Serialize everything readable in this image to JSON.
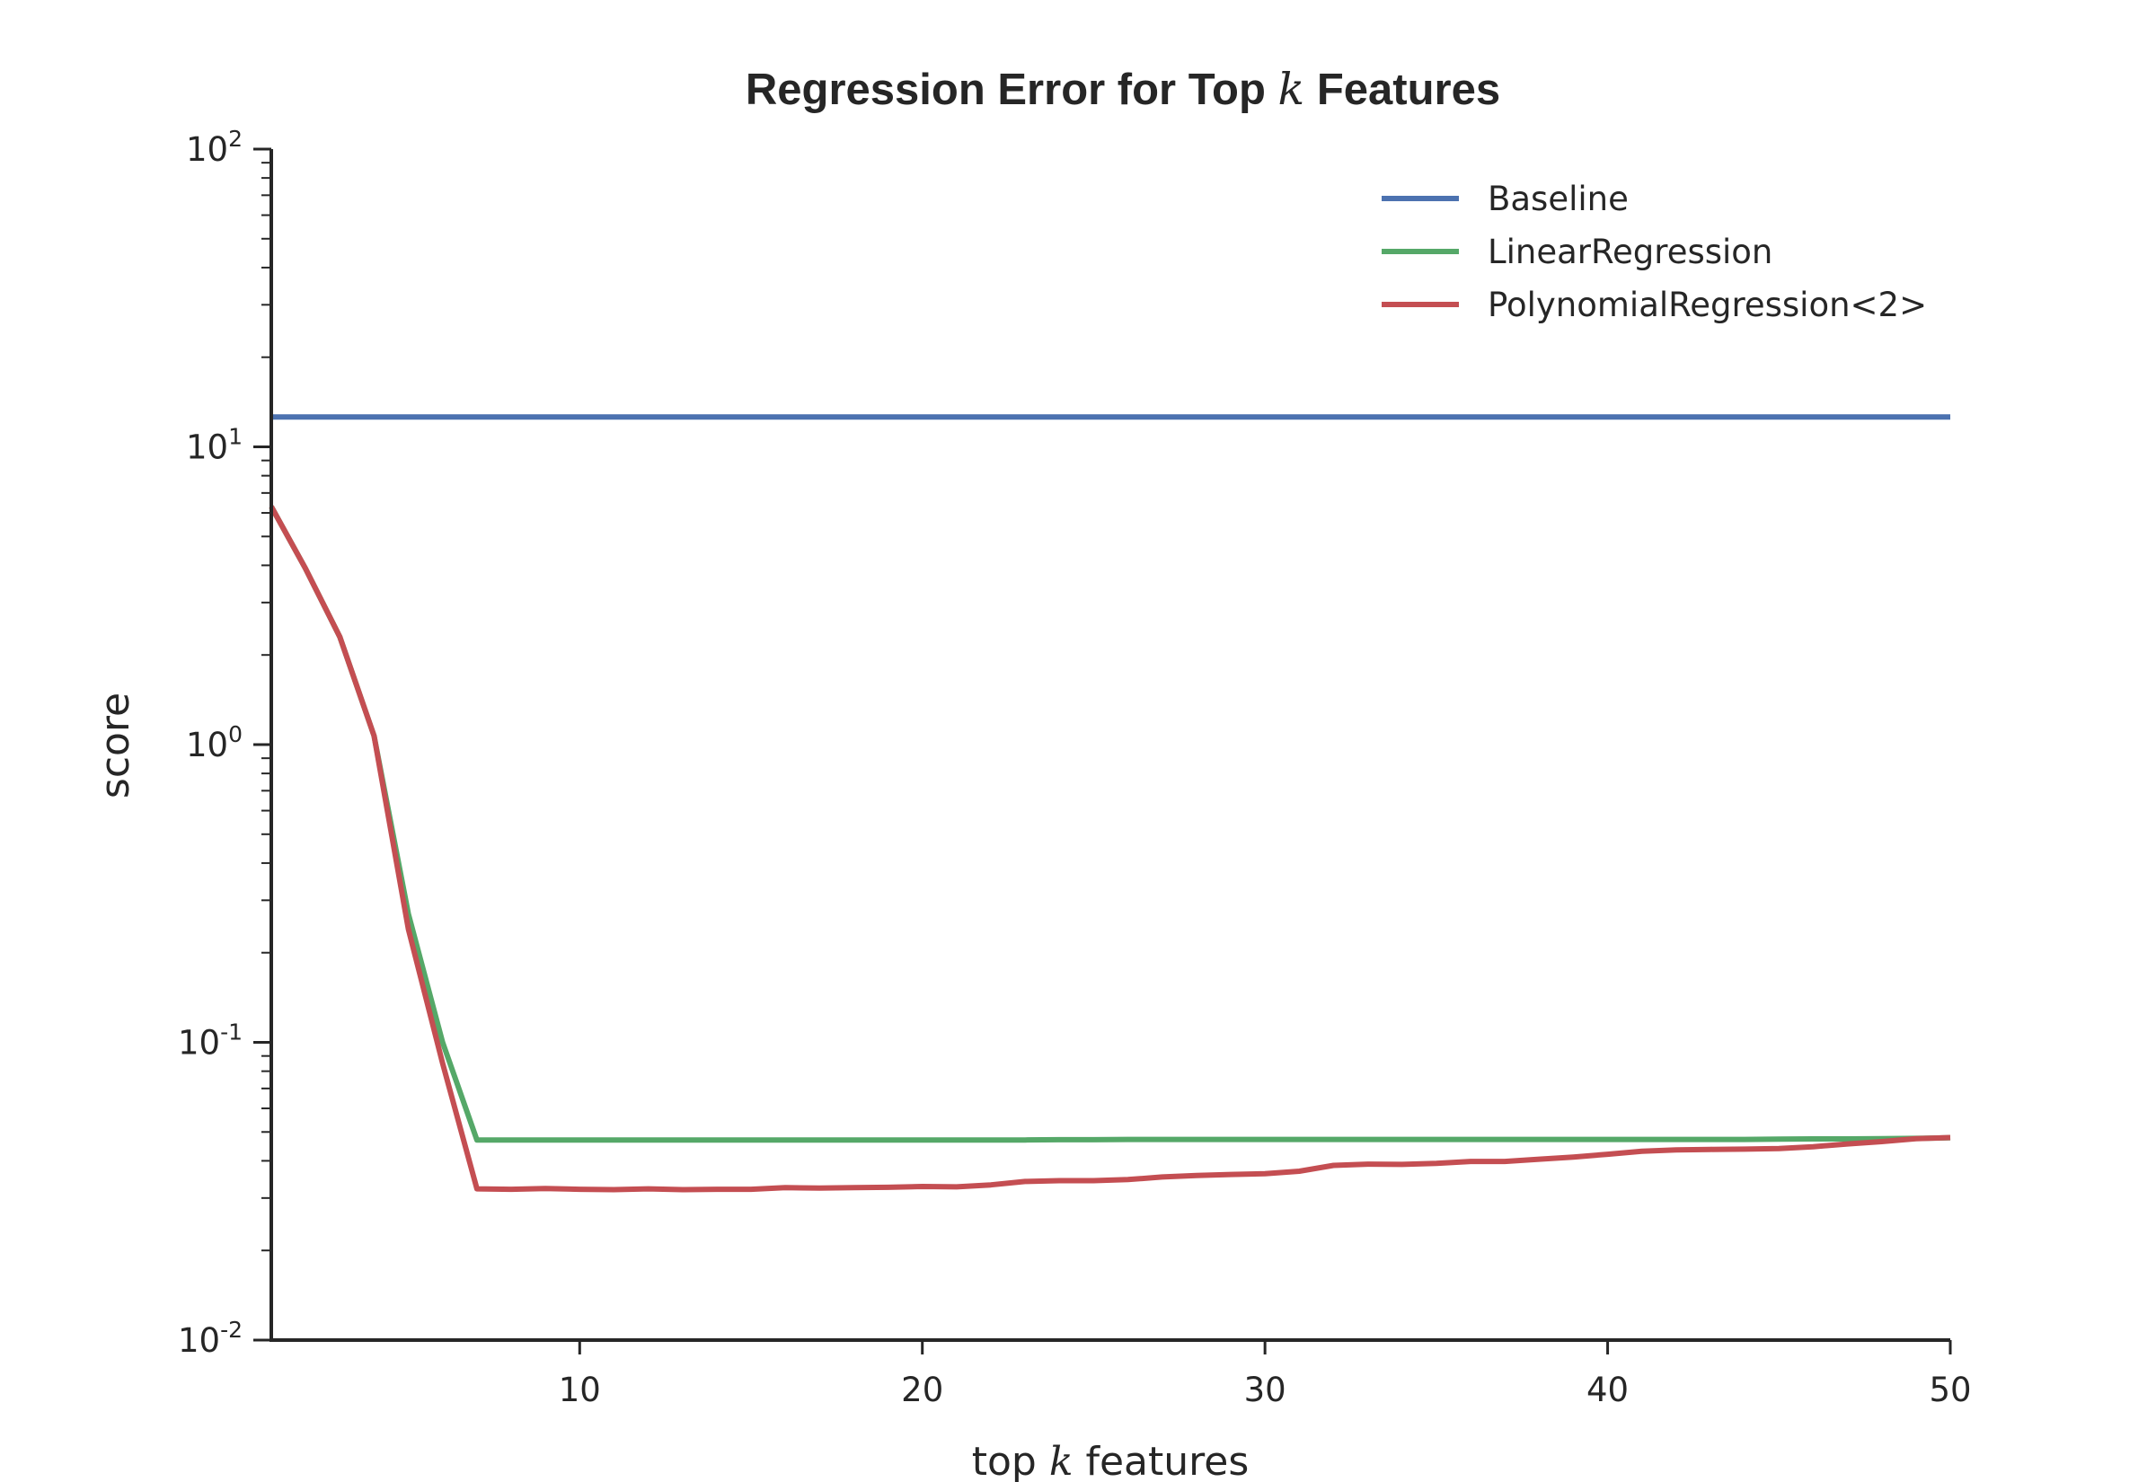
{
  "chart_data": {
    "type": "line",
    "title": {
      "prefix": "Regression Error for Top ",
      "math": "k",
      "suffix": " Features"
    },
    "xlabel": {
      "prefix": "top ",
      "math": "k",
      "suffix": " features"
    },
    "ylabel": "score",
    "xlim": [
      1,
      50
    ],
    "ylim": [
      0.01,
      100
    ],
    "yscale": "log",
    "grid": false,
    "legend_position": "top-right",
    "x_ticks": [
      10,
      20,
      30,
      40,
      50
    ],
    "y_ticks": [
      {
        "value": 0.01,
        "base": "10",
        "exp": "-2"
      },
      {
        "value": 0.1,
        "base": "10",
        "exp": "-1"
      },
      {
        "value": 1,
        "base": "10",
        "exp": "0"
      },
      {
        "value": 10,
        "base": "10",
        "exp": "1"
      },
      {
        "value": 100,
        "base": "10",
        "exp": "2"
      }
    ],
    "x": [
      1,
      2,
      3,
      4,
      5,
      6,
      7,
      8,
      9,
      10,
      11,
      12,
      13,
      14,
      15,
      16,
      17,
      18,
      19,
      20,
      21,
      22,
      23,
      24,
      25,
      26,
      27,
      28,
      29,
      30,
      31,
      32,
      33,
      34,
      35,
      36,
      37,
      38,
      39,
      40,
      41,
      42,
      43,
      44,
      45,
      46,
      47,
      48,
      49,
      50
    ],
    "series": [
      {
        "name": "Baseline",
        "color": "#4c72b0",
        "values": [
          12.6,
          12.6,
          12.6,
          12.6,
          12.6,
          12.6,
          12.6,
          12.6,
          12.6,
          12.6,
          12.6,
          12.6,
          12.6,
          12.6,
          12.6,
          12.6,
          12.6,
          12.6,
          12.6,
          12.6,
          12.6,
          12.6,
          12.6,
          12.6,
          12.6,
          12.6,
          12.6,
          12.6,
          12.6,
          12.6,
          12.6,
          12.6,
          12.6,
          12.6,
          12.6,
          12.6,
          12.6,
          12.6,
          12.6,
          12.6,
          12.6,
          12.6,
          12.6,
          12.6,
          12.6,
          12.6,
          12.6,
          12.6,
          12.6,
          12.6
        ]
      },
      {
        "name": "LinearRegression",
        "color": "#55a868",
        "values": [
          6.3,
          3.9,
          2.3,
          1.07,
          0.27,
          0.1,
          0.047,
          0.047,
          0.047,
          0.047,
          0.047,
          0.047,
          0.047,
          0.047,
          0.047,
          0.047,
          0.047,
          0.047,
          0.047,
          0.047,
          0.047,
          0.047,
          0.047,
          0.0471,
          0.0471,
          0.0472,
          0.0472,
          0.0472,
          0.0472,
          0.0472,
          0.0472,
          0.0472,
          0.0472,
          0.0472,
          0.0472,
          0.0472,
          0.0472,
          0.0472,
          0.0472,
          0.0472,
          0.0472,
          0.0472,
          0.0472,
          0.0472,
          0.0473,
          0.0474,
          0.0474,
          0.0475,
          0.0476,
          0.0478
        ]
      },
      {
        "name": "PolynomialRegression<2>",
        "color": "#c44e52",
        "values": [
          6.3,
          3.9,
          2.3,
          1.07,
          0.24,
          0.085,
          0.0322,
          0.0321,
          0.0323,
          0.0321,
          0.032,
          0.0322,
          0.032,
          0.0321,
          0.0321,
          0.0325,
          0.0324,
          0.0325,
          0.0326,
          0.0328,
          0.0327,
          0.0332,
          0.0341,
          0.0343,
          0.0343,
          0.0346,
          0.0353,
          0.0357,
          0.036,
          0.0362,
          0.0369,
          0.0386,
          0.039,
          0.0389,
          0.0392,
          0.0398,
          0.0398,
          0.0405,
          0.0412,
          0.0421,
          0.0431,
          0.0435,
          0.0437,
          0.0438,
          0.044,
          0.0446,
          0.0456,
          0.0464,
          0.0475,
          0.0479
        ]
      }
    ]
  }
}
